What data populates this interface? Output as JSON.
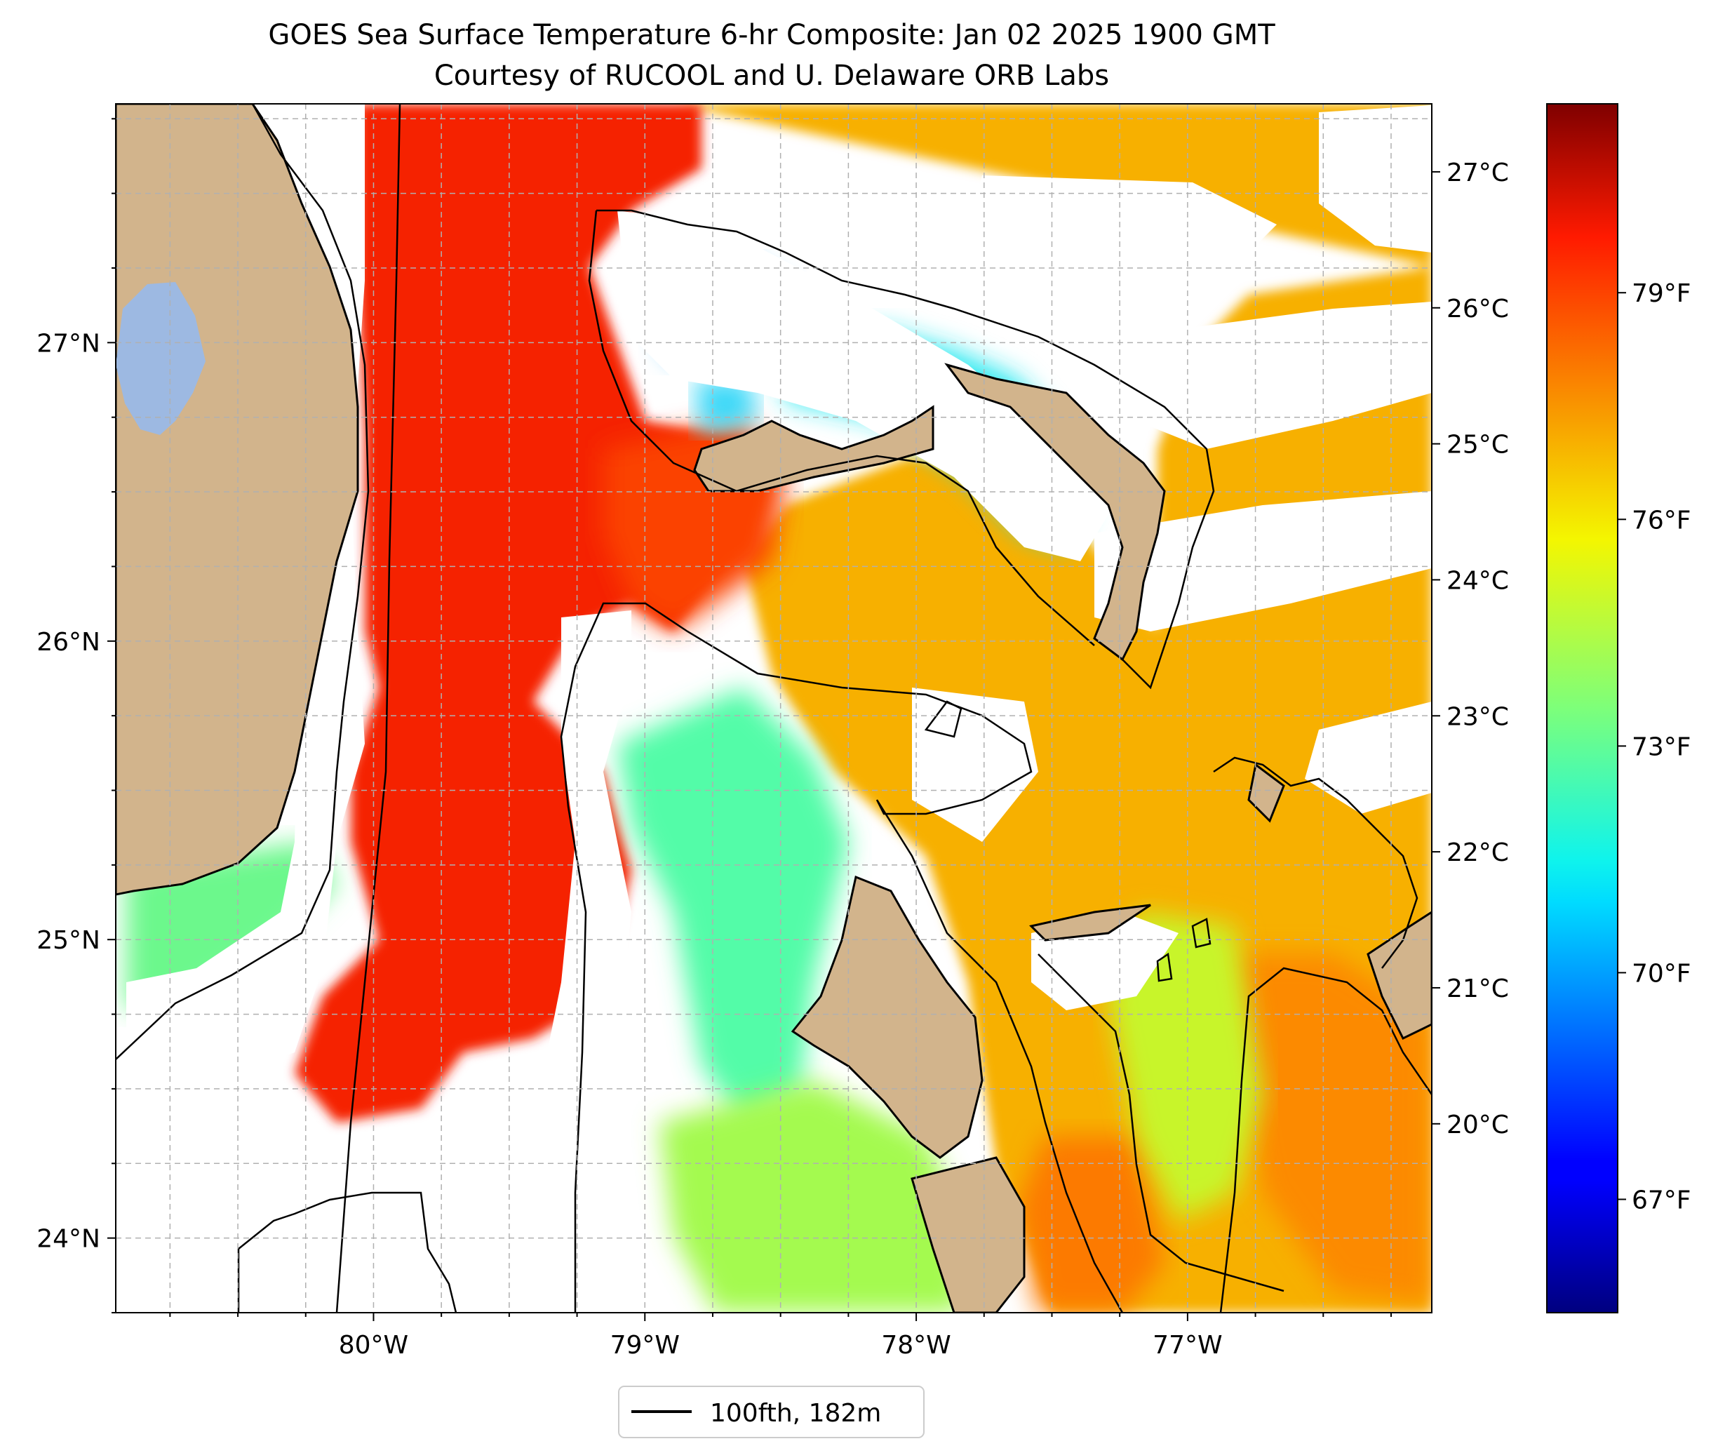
{
  "title": "GOES Sea Surface Temperature 6-hr Composite: Jan 02 2025 1900 GMT",
  "subtitle": "Courtesy of RUCOOL and U. Delaware ORB Labs",
  "map": {
    "lon_range": [
      -80.95,
      -76.1
    ],
    "lat_range": [
      23.75,
      27.8
    ],
    "lat_ticks": [
      {
        "value": 24,
        "label": "24°N"
      },
      {
        "value": 25,
        "label": "25°N"
      },
      {
        "value": 26,
        "label": "26°N"
      },
      {
        "value": 27,
        "label": "27°N"
      }
    ],
    "lon_ticks": [
      {
        "value": -80,
        "label": "80°W"
      },
      {
        "value": -79,
        "label": "79°W"
      },
      {
        "value": -78,
        "label": "78°W"
      },
      {
        "value": -77,
        "label": "77°W"
      }
    ],
    "grid": true,
    "colors": {
      "land": "#d2b48c",
      "lake": "#9db9e2",
      "grid": "#b0b0b0"
    }
  },
  "colorbar": {
    "colormap": "jet",
    "range_f": [
      65.5,
      81.5
    ],
    "celsius_ticks": [
      {
        "value": 20,
        "label": "20°C"
      },
      {
        "value": 21,
        "label": "21°C"
      },
      {
        "value": 22,
        "label": "22°C"
      },
      {
        "value": 23,
        "label": "23°C"
      },
      {
        "value": 24,
        "label": "24°C"
      },
      {
        "value": 25,
        "label": "25°C"
      },
      {
        "value": 26,
        "label": "26°C"
      },
      {
        "value": 27,
        "label": "27°C"
      }
    ],
    "fahrenheit_ticks": [
      {
        "value": 67,
        "label": "67°F"
      },
      {
        "value": 70,
        "label": "70°F"
      },
      {
        "value": 73,
        "label": "73°F"
      },
      {
        "value": 76,
        "label": "76°F"
      },
      {
        "value": 79,
        "label": "79°F"
      }
    ]
  },
  "legend": {
    "entries": [
      {
        "label": "100fth, 182m",
        "color": "#000000"
      }
    ],
    "placement": "bottom-center"
  }
}
